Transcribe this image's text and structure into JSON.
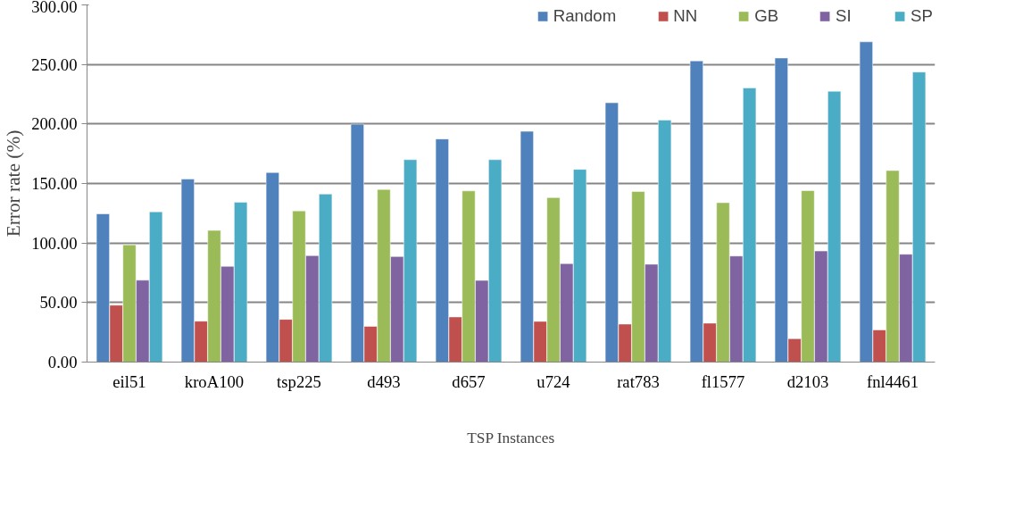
{
  "chart_data": {
    "type": "bar",
    "xlabel": "TSP Instances",
    "ylabel": "Error rate (%)",
    "categories": [
      "eil51",
      "kroA100",
      "tsp225",
      "d493",
      "d657",
      "u724",
      "rat783",
      "fl1577",
      "d2103",
      "fnl4461"
    ],
    "series": [
      {
        "name": "Random",
        "color": "#4f81bd",
        "values": [
          124.5,
          153.7,
          159.2,
          199.8,
          187.4,
          193.8,
          217.8,
          253.0,
          255.4,
          269.0
        ]
      },
      {
        "name": "NN",
        "color": "#c0504d",
        "values": [
          47.8,
          34.4,
          35.9,
          30.0,
          37.9,
          34.2,
          31.9,
          32.7,
          19.6,
          27.0
        ]
      },
      {
        "name": "GB",
        "color": "#9bbb59",
        "values": [
          98.5,
          110.6,
          127.0,
          145.0,
          143.8,
          138.1,
          143.3,
          133.9,
          144.0,
          160.9
        ]
      },
      {
        "name": "SI",
        "color": "#8064a2",
        "values": [
          68.8,
          80.4,
          89.4,
          88.6,
          68.6,
          82.7,
          82.2,
          89.1,
          93.3,
          90.6
        ]
      },
      {
        "name": "SP",
        "color": "#4bacc6",
        "values": [
          126.2,
          134.2,
          141.1,
          170.0,
          170.0,
          161.9,
          203.2,
          230.2,
          227.5,
          243.6
        ]
      }
    ],
    "ylim": [
      0,
      300
    ],
    "yticks": [
      {
        "value": 0,
        "label": "0.00"
      },
      {
        "value": 50,
        "label": "50.00"
      },
      {
        "value": 100,
        "label": "100.00"
      },
      {
        "value": 150,
        "label": "150.00"
      },
      {
        "value": 200,
        "label": "200.00"
      },
      {
        "value": 250,
        "label": "250.00"
      },
      {
        "value": 300,
        "label": "300.00"
      }
    ],
    "grid": "y",
    "legend": "top right"
  }
}
